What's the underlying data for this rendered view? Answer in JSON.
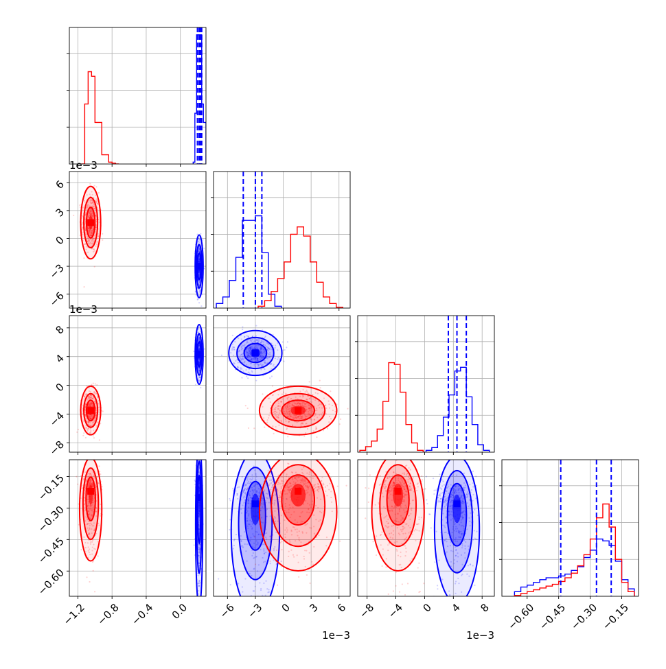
{
  "chart_data": {
    "type": "corner",
    "series": [
      {
        "name": "",
        "color": "#ff0000"
      },
      {
        "name": "",
        "color": "#0000ff"
      }
    ],
    "parameters": [
      {
        "index": 0,
        "range": [
          -1.3,
          0.3
        ],
        "ticks": [
          -1.2,
          -0.8,
          -0.4,
          0.0
        ],
        "tick_labels": [
          "−1.2",
          "−0.8",
          "−0.4",
          "0.0"
        ],
        "offset_text": ""
      },
      {
        "index": 1,
        "range": [
          -7.5,
          7.2
        ],
        "ticks": [
          -6,
          -3,
          0,
          3,
          6
        ],
        "tick_labels": [
          "−6",
          "−3",
          "0",
          "3",
          "6"
        ],
        "offset_text": "1e−3"
      },
      {
        "index": 2,
        "range": [
          -9.3,
          9.7
        ],
        "ticks": [
          -8,
          -4,
          0,
          4,
          8
        ],
        "tick_labels": [
          "−8",
          "−4",
          "0",
          "4",
          "8"
        ],
        "offset_text": "1e−3"
      },
      {
        "index": 3,
        "range": [
          -0.72,
          -0.07
        ],
        "ticks": [
          -0.6,
          -0.45,
          -0.3,
          -0.15
        ],
        "tick_labels": [
          "−0.60",
          "−0.45",
          "−0.30",
          "−0.15"
        ],
        "offset_text": ""
      }
    ],
    "blobs": [
      {
        "row": 1,
        "col": 0,
        "series": 0,
        "cx": -1.05,
        "cy": 1.7,
        "sx": 0.045,
        "sy": 1.5
      },
      {
        "row": 1,
        "col": 0,
        "series": 1,
        "cx": 0.22,
        "cy": -3.0,
        "sx": 0.018,
        "sy": 1.3
      },
      {
        "row": 2,
        "col": 0,
        "series": 1,
        "cx": 0.22,
        "cy": 4.3,
        "sx": 0.018,
        "sy": 1.6
      },
      {
        "row": 2,
        "col": 0,
        "series": 0,
        "cx": -1.05,
        "cy": -3.5,
        "sx": 0.045,
        "sy": 1.3
      },
      {
        "row": 2,
        "col": 1,
        "series": 1,
        "cx": -3.0,
        "cy": 4.5,
        "sx": 1.1,
        "sy": 1.2
      },
      {
        "row": 2,
        "col": 1,
        "series": 0,
        "cx": 1.6,
        "cy": -3.5,
        "sx": 1.6,
        "sy": 1.3
      },
      {
        "row": 3,
        "col": 0,
        "series": 0,
        "cx": -1.05,
        "cy": -0.22,
        "sx": 0.05,
        "sy": 0.07
      },
      {
        "row": 3,
        "col": 0,
        "series": 1,
        "cx": 0.22,
        "cy": -0.25,
        "sx": 0.016,
        "sy": 0.11
      },
      {
        "row": 3,
        "col": 1,
        "series": 1,
        "cx": -3.0,
        "cy": -0.28,
        "sx": 1.0,
        "sy": 0.11
      },
      {
        "row": 3,
        "col": 1,
        "series": 0,
        "cx": 1.6,
        "cy": -0.22,
        "sx": 1.6,
        "sy": 0.08
      },
      {
        "row": 3,
        "col": 2,
        "series": 0,
        "cx": -3.7,
        "cy": -0.22,
        "sx": 1.4,
        "sy": 0.08
      },
      {
        "row": 3,
        "col": 2,
        "series": 1,
        "cx": 4.5,
        "cy": -0.28,
        "sx": 1.2,
        "sy": 0.1
      }
    ],
    "histograms": [
      {
        "param": 0,
        "series": 0,
        "edges": [
          -1.16,
          -1.12,
          -1.08,
          -1.04,
          -1.0,
          -0.96,
          -0.92,
          -0.88,
          -0.84,
          -0.8,
          -0.76,
          -0.72
        ],
        "counts": [
          0,
          0.65,
          1.0,
          0.95,
          0.45,
          0.45,
          0.1,
          0.1,
          0.02,
          0.01,
          0
        ]
      },
      {
        "param": 0,
        "series": 1,
        "edges": [
          0.15,
          0.17,
          0.19,
          0.21,
          0.23,
          0.25,
          0.27,
          0.3
        ],
        "counts": [
          0.02,
          0.55,
          1.4,
          1.4,
          1.4,
          0.65,
          0.45
        ]
      },
      {
        "param": 1,
        "series": 1,
        "edges": [
          -7.2,
          -6.5,
          -5.8,
          -5.1,
          -4.4,
          -3.7,
          -3.0,
          -2.3,
          -1.6,
          -0.9,
          -0.2
        ],
        "counts": [
          0.05,
          0.12,
          0.3,
          0.55,
          0.95,
          0.95,
          1.0,
          0.6,
          0.15,
          0.02
        ]
      },
      {
        "param": 1,
        "series": 0,
        "edges": [
          -2.7,
          -2.0,
          -1.3,
          -0.6,
          0.1,
          0.8,
          1.5,
          2.2,
          2.9,
          3.6,
          4.3,
          5.0,
          5.7,
          6.4
        ],
        "counts": [
          0.02,
          0.08,
          0.18,
          0.32,
          0.5,
          0.8,
          0.88,
          0.78,
          0.5,
          0.28,
          0.12,
          0.05,
          0.01
        ]
      },
      {
        "param": 2,
        "series": 0,
        "edges": [
          -9.0,
          -8.2,
          -7.4,
          -6.6,
          -5.8,
          -5.0,
          -4.2,
          -3.4,
          -2.6,
          -1.8,
          -1.0,
          -0.2
        ],
        "counts": [
          0.02,
          0.06,
          0.12,
          0.25,
          0.55,
          0.97,
          0.95,
          0.65,
          0.3,
          0.1,
          0.02
        ]
      },
      {
        "param": 2,
        "series": 1,
        "edges": [
          0.2,
          1.0,
          1.8,
          2.6,
          3.4,
          4.2,
          5.0,
          5.8,
          6.6,
          7.4,
          8.2,
          9.0
        ],
        "counts": [
          0.02,
          0.05,
          0.18,
          0.38,
          0.62,
          0.88,
          0.92,
          0.6,
          0.3,
          0.08,
          0.02
        ]
      },
      {
        "param": 3,
        "series": 1,
        "edges": [
          -0.66,
          -0.63,
          -0.6,
          -0.57,
          -0.54,
          -0.51,
          -0.48,
          -0.45,
          -0.42,
          -0.39,
          -0.36,
          -0.33,
          -0.3,
          -0.27,
          -0.24,
          -0.21,
          -0.18,
          -0.15,
          -0.12,
          -0.09
        ],
        "counts": [
          0.05,
          0.1,
          0.12,
          0.15,
          0.18,
          0.2,
          0.2,
          0.22,
          0.24,
          0.28,
          0.32,
          0.42,
          0.5,
          0.62,
          0.6,
          0.55,
          0.38,
          0.18,
          0.08
        ]
      },
      {
        "param": 3,
        "series": 0,
        "edges": [
          -0.66,
          -0.63,
          -0.6,
          -0.57,
          -0.54,
          -0.51,
          -0.48,
          -0.45,
          -0.42,
          -0.39,
          -0.36,
          -0.33,
          -0.3,
          -0.27,
          -0.24,
          -0.21,
          -0.18,
          -0.15,
          -0.12,
          -0.09
        ],
        "counts": [
          0.01,
          0.03,
          0.05,
          0.07,
          0.09,
          0.11,
          0.13,
          0.16,
          0.2,
          0.25,
          0.33,
          0.45,
          0.62,
          0.85,
          1.0,
          0.75,
          0.4,
          0.15,
          0.05
        ]
      }
    ],
    "quantile_lines": [
      {
        "param": 0,
        "series": 1,
        "values": [
          0.2,
          0.22,
          0.235,
          0.25
        ]
      },
      {
        "param": 1,
        "series": 1,
        "values": [
          -4.3,
          -3.0,
          -2.3
        ]
      },
      {
        "param": 2,
        "series": 1,
        "values": [
          3.3,
          4.5,
          5.8
        ]
      },
      {
        "param": 3,
        "series": 1,
        "values": [
          -0.44,
          -0.27,
          -0.2
        ]
      }
    ]
  }
}
